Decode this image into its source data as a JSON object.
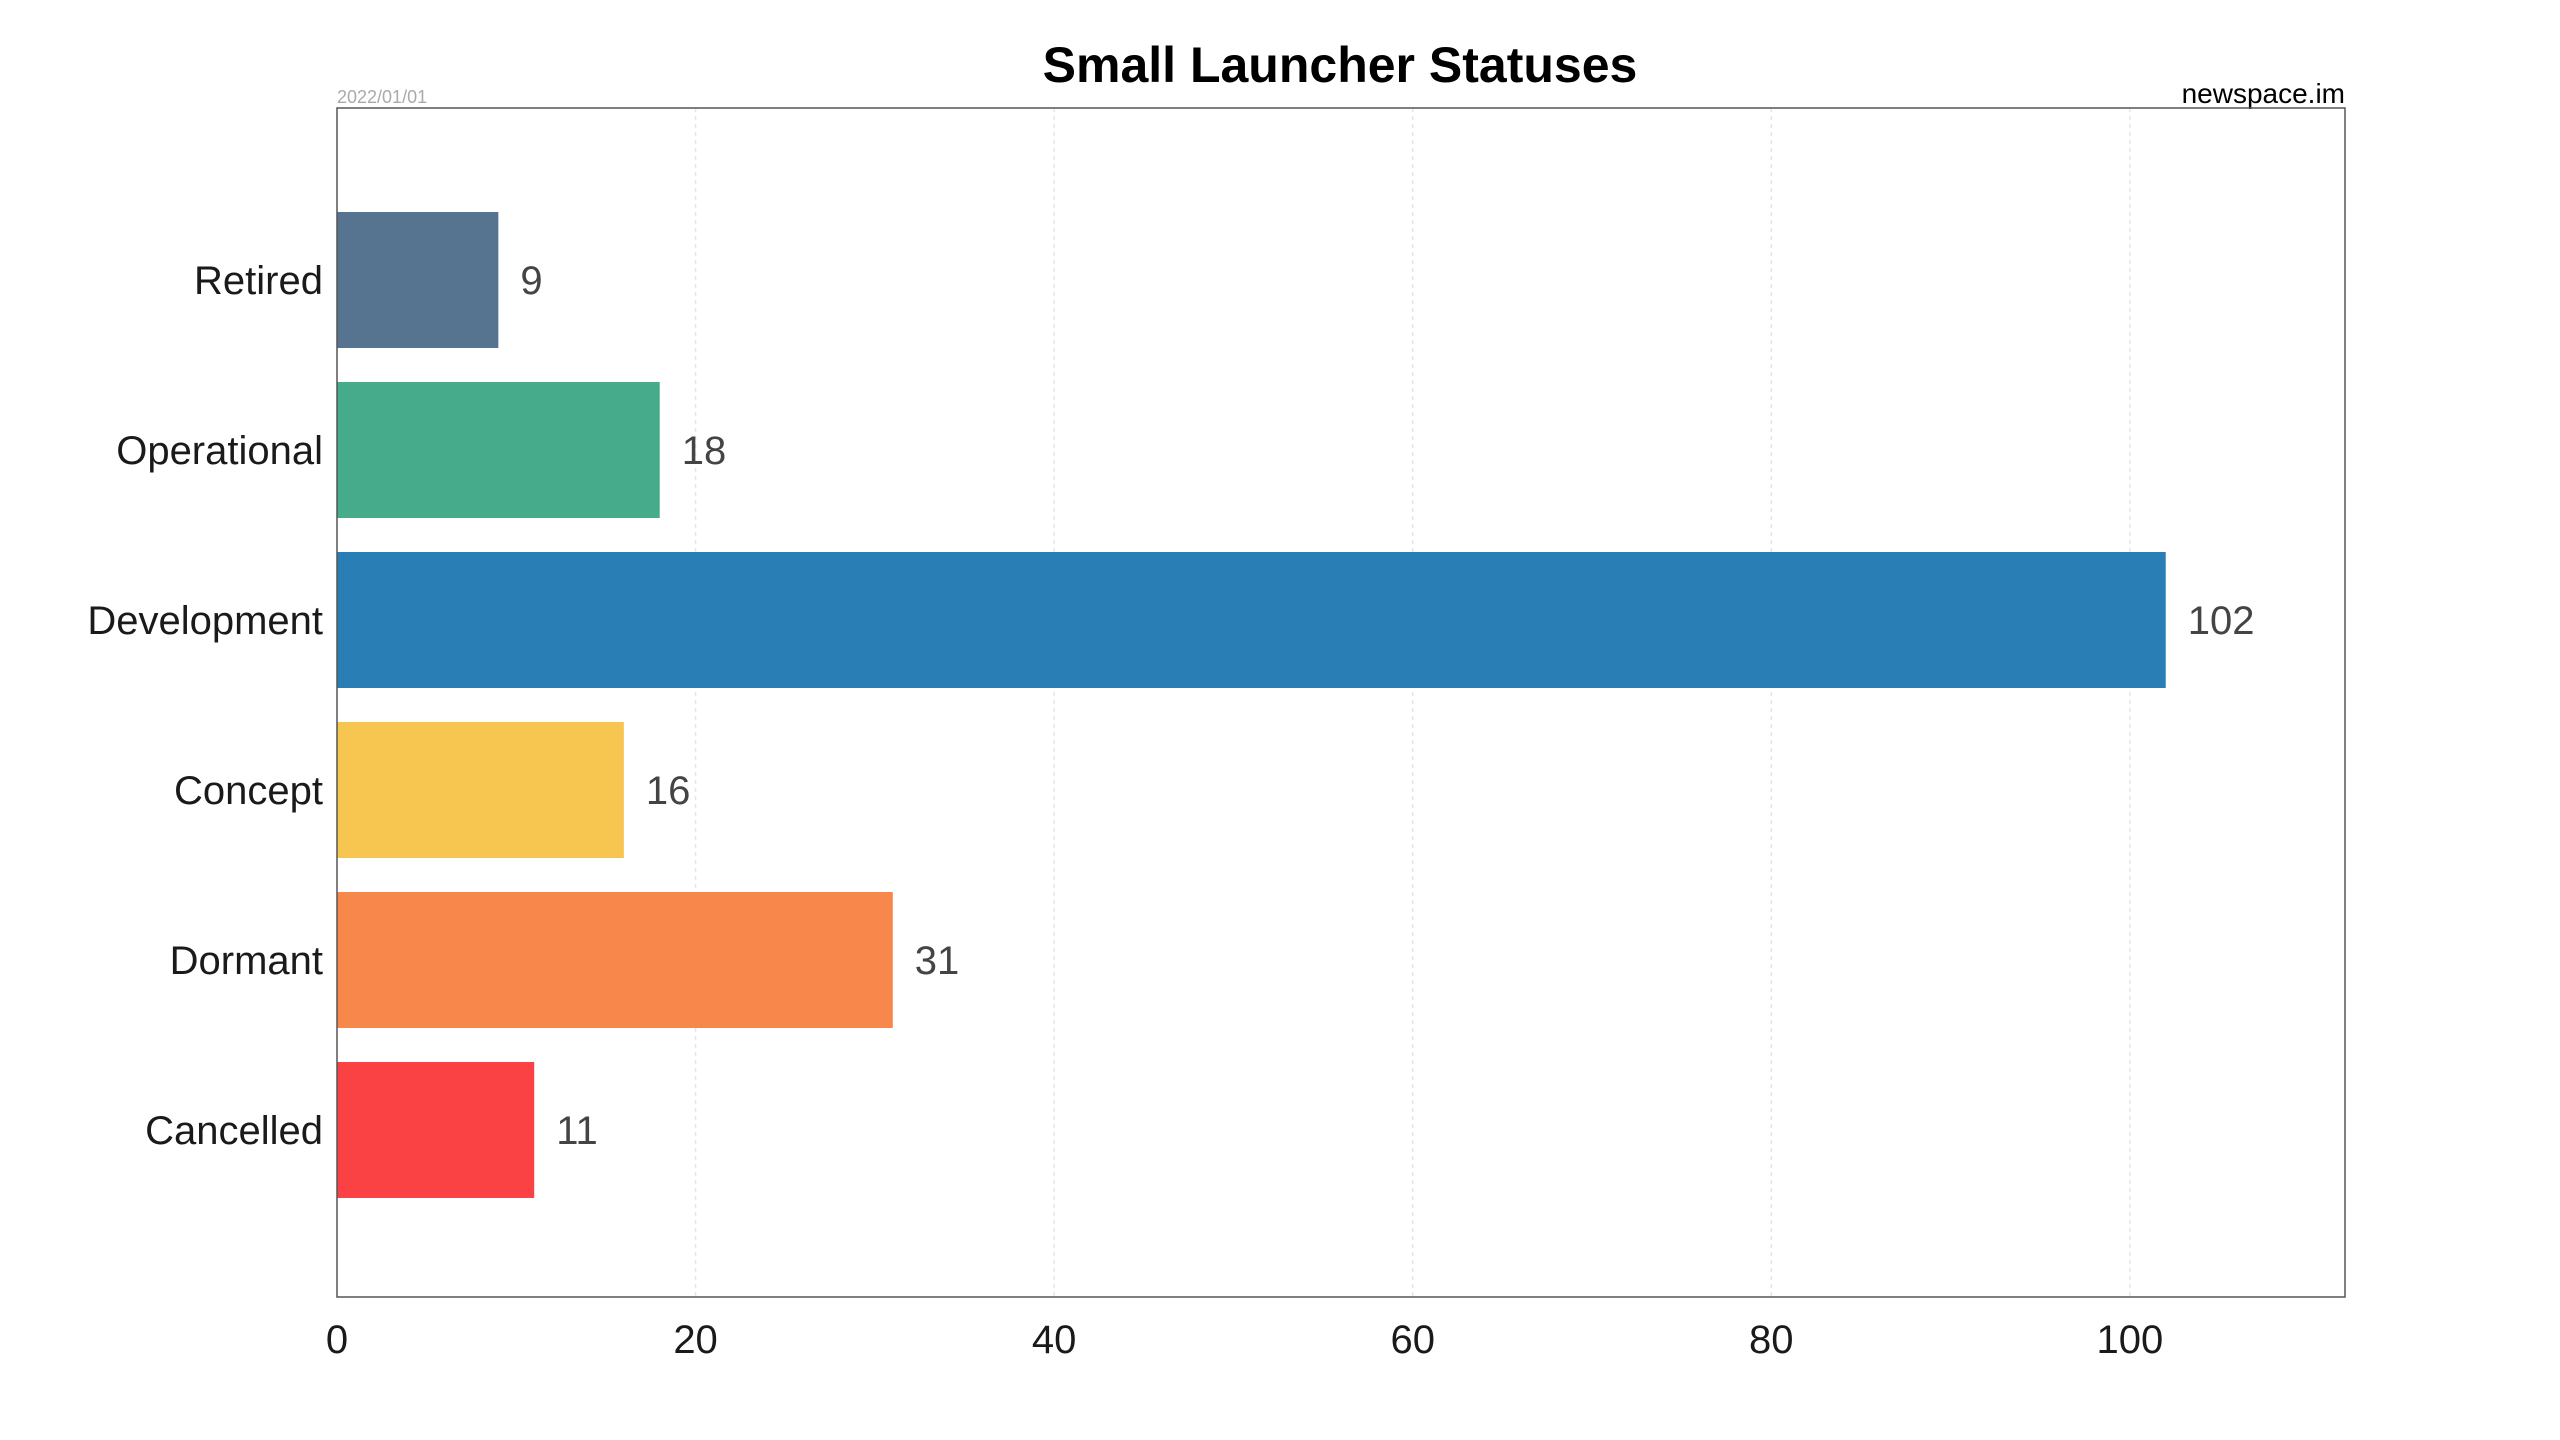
{
  "chart_data": {
    "type": "bar",
    "orientation": "horizontal",
    "title": "Small Launcher Statuses",
    "date": "2022/01/01",
    "source": "newspace.im",
    "xlabel": "",
    "ylabel": "",
    "xlim": [
      0,
      112
    ],
    "x_ticks": [
      0,
      20,
      40,
      60,
      80,
      100
    ],
    "grid": "vertical dotted",
    "categories": [
      "Retired",
      "Operational",
      "Development",
      "Concept",
      "Dormant",
      "Cancelled"
    ],
    "values": [
      9,
      18,
      102,
      16,
      31,
      11
    ],
    "colors": [
      "#56748f",
      "#45ab8a",
      "#287eb5",
      "#f7c650",
      "#f7874a",
      "#fa4245"
    ]
  }
}
